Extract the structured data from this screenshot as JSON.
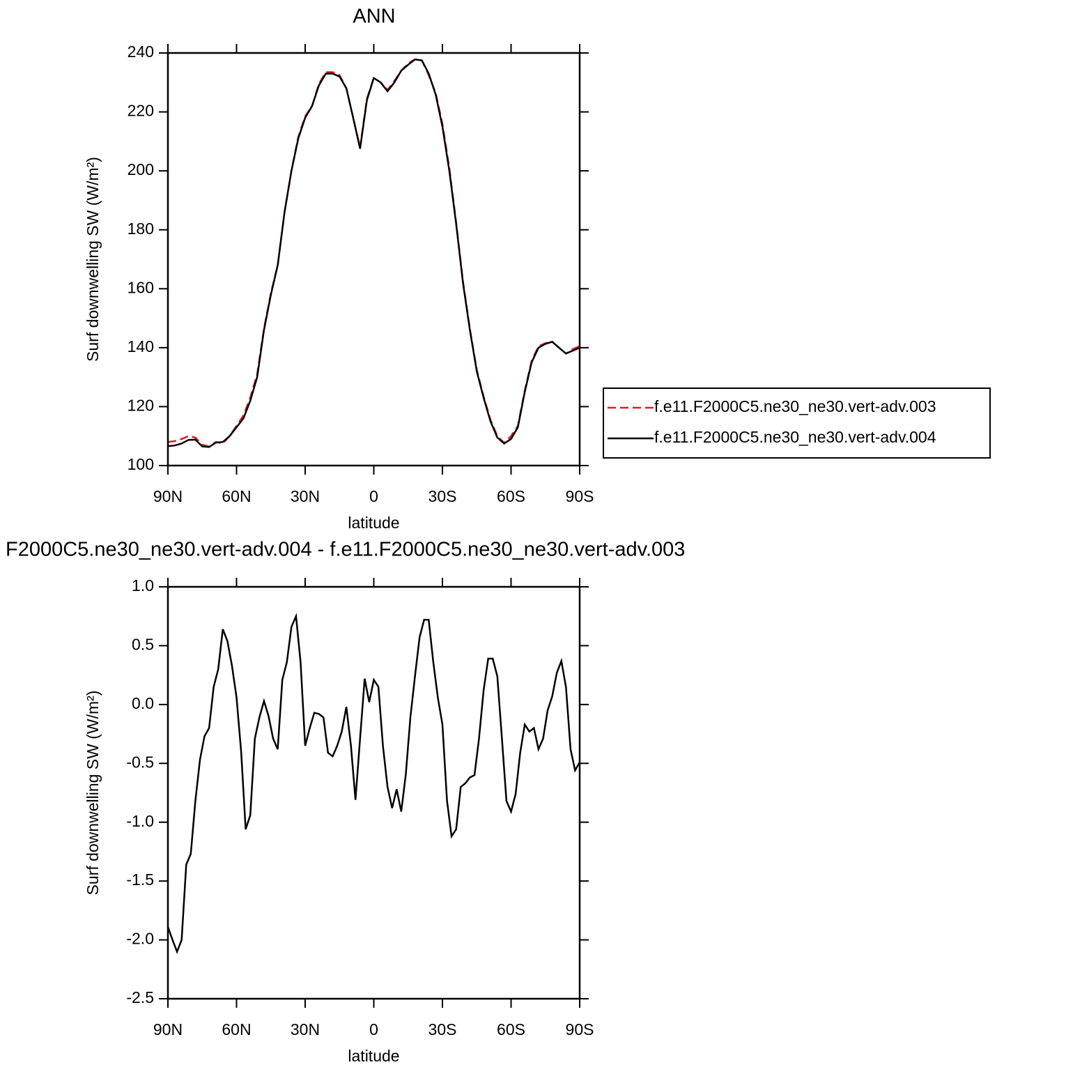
{
  "chart_data": [
    {
      "type": "line",
      "title": "ANN",
      "xlabel": "latitude",
      "ylabel": "Surf downwelling SW (W/m²)",
      "x": [
        90,
        87,
        84,
        81,
        78,
        75,
        72,
        69,
        66,
        63,
        60,
        57,
        54,
        51,
        48,
        45,
        42,
        39,
        36,
        33,
        30,
        27,
        24,
        21,
        18,
        15,
        12,
        9,
        6,
        3,
        0,
        -3,
        -6,
        -9,
        -12,
        -15,
        -18,
        -21,
        -24,
        -27,
        -30,
        -33,
        -36,
        -39,
        -42,
        -45,
        -48,
        -51,
        -54,
        -57,
        -60,
        -63,
        -66,
        -69,
        -72,
        -75,
        -78,
        -81,
        -84,
        -87,
        -90
      ],
      "series": [
        {
          "name": "f.e11.F2000C5.ne30_ne30.vert-adv.003",
          "color": "#e41a1c",
          "dash": "dashed",
          "values": [
            108,
            108.3,
            109,
            110,
            109.5,
            107,
            106.5,
            108,
            107.5,
            110,
            113.5,
            117,
            123,
            131,
            146.5,
            158.5,
            168,
            186,
            200,
            211.5,
            218.5,
            222,
            229.5,
            233.5,
            233.5,
            232.5,
            228,
            218,
            208,
            224.5,
            231.5,
            230,
            227.5,
            230.5,
            234,
            236.5,
            237.8,
            237.5,
            232.5,
            226.5,
            216,
            201,
            182.5,
            162.5,
            146.5,
            132.5,
            123.5,
            115.5,
            110,
            107.7,
            110,
            113.5,
            125.5,
            135.5,
            140.5,
            141.5,
            142,
            140,
            138,
            139.5,
            140.5
          ]
        },
        {
          "name": "f.e11.F2000C5.ne30_ne30.vert-adv.004",
          "color": "#000000",
          "dash": "solid",
          "values": [
            106.6,
            106.8,
            107.5,
            108.7,
            108.8,
            106.5,
            106.3,
            107.8,
            108,
            110,
            113,
            116,
            122,
            130,
            146,
            158,
            168,
            186,
            200,
            211,
            218,
            222,
            229,
            233,
            233,
            232,
            228,
            218,
            207.5,
            224,
            231.5,
            230,
            227,
            230,
            234,
            236,
            237.8,
            237.5,
            233,
            226,
            215,
            200,
            182,
            162,
            146,
            132,
            123,
            115,
            109.5,
            107.5,
            109,
            113,
            125,
            135,
            140,
            141.3,
            142,
            140,
            138,
            139,
            140
          ]
        }
      ],
      "xlim": [
        90,
        -90
      ],
      "xticks": [
        {
          "value": 90,
          "label": "90N"
        },
        {
          "value": 60,
          "label": "60N"
        },
        {
          "value": 30,
          "label": "30N"
        },
        0,
        {
          "value": -30,
          "label": "30S"
        },
        {
          "value": -60,
          "label": "60S"
        },
        {
          "value": -90,
          "label": "90S"
        }
      ],
      "ylim": [
        100,
        240
      ],
      "yticks": [
        100,
        120,
        140,
        160,
        180,
        200,
        220,
        240
      ],
      "legend": "right"
    },
    {
      "type": "line",
      "title": "F2000C5.ne30_ne30.vert-adv.004 - f.e11.F2000C5.ne30_ne30.vert-adv.003",
      "xlabel": "latitude",
      "ylabel": "Surf downwelling SW (W/m²)",
      "x": [
        90,
        88,
        86,
        84,
        82,
        80,
        78,
        76,
        74,
        72,
        70,
        68,
        66,
        64,
        62,
        60,
        58,
        56,
        54,
        52,
        50,
        48,
        46,
        44,
        42,
        40,
        38,
        36,
        34,
        32,
        30,
        28,
        26,
        24,
        22,
        20,
        18,
        16,
        14,
        12,
        10,
        8,
        6,
        4,
        2,
        0,
        -2,
        -4,
        -6,
        -8,
        -10,
        -12,
        -14,
        -16,
        -18,
        -20,
        -22,
        -24,
        -26,
        -28,
        -30,
        -32,
        -34,
        -36,
        -38,
        -40,
        -42,
        -44,
        -46,
        -48,
        -50,
        -52,
        -54,
        -56,
        -58,
        -60,
        -62,
        -64,
        -66,
        -68,
        -70,
        -72,
        -74,
        -76,
        -78,
        -80,
        -82,
        -84,
        -86,
        -88,
        -90
      ],
      "series": [
        {
          "name": "",
          "color": "#000000",
          "dash": "solid",
          "values": [
            -1.89,
            -2.0,
            -2.1,
            -2.0,
            -1.36,
            -1.27,
            -0.82,
            -0.47,
            -0.27,
            -0.2,
            0.15,
            0.3,
            0.64,
            0.54,
            0.33,
            0.06,
            -0.4,
            -1.06,
            -0.94,
            -0.29,
            -0.11,
            0.03,
            -0.1,
            -0.29,
            -0.38,
            0.21,
            0.36,
            0.66,
            0.75,
            0.36,
            -0.35,
            -0.2,
            -0.07,
            -0.08,
            -0.11,
            -0.41,
            -0.44,
            -0.35,
            -0.23,
            -0.02,
            -0.35,
            -0.81,
            -0.29,
            0.22,
            0.02,
            0.21,
            0.15,
            -0.35,
            -0.7,
            -0.88,
            -0.72,
            -0.91,
            -0.59,
            -0.11,
            0.24,
            0.57,
            0.72,
            0.72,
            0.36,
            0.06,
            -0.17,
            -0.82,
            -1.12,
            -1.06,
            -0.7,
            -0.67,
            -0.62,
            -0.6,
            -0.29,
            0.12,
            0.39,
            0.39,
            0.24,
            -0.29,
            -0.82,
            -0.91,
            -0.76,
            -0.41,
            -0.17,
            -0.23,
            -0.2,
            -0.38,
            -0.29,
            -0.05,
            0.07,
            0.27,
            0.37,
            0.15,
            -0.38,
            -0.56,
            -0.49
          ]
        }
      ],
      "xlim": [
        90,
        -90
      ],
      "xticks": [
        {
          "value": 90,
          "label": "90N"
        },
        {
          "value": 60,
          "label": "60N"
        },
        {
          "value": 30,
          "label": "30N"
        },
        0,
        {
          "value": -30,
          "label": "30S"
        },
        {
          "value": -60,
          "label": "60S"
        },
        {
          "value": -90,
          "label": "90S"
        }
      ],
      "ylim": [
        -2.5,
        1.0
      ],
      "yticks": [
        {
          "value": -2.5,
          "label": "-2.5"
        },
        {
          "value": -2,
          "label": "-2.0"
        },
        -1.5,
        {
          "value": -1,
          "label": "-1.0"
        },
        -0.5,
        {
          "value": 0,
          "label": "0.0"
        },
        0.5,
        {
          "value": 1,
          "label": "1.0"
        }
      ]
    }
  ]
}
